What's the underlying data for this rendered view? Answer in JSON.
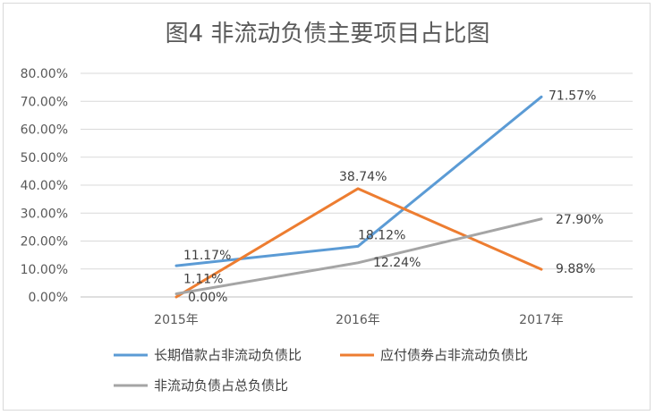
{
  "chart_data": {
    "type": "line",
    "title": "图4  非流动负债主要项目占比图",
    "categories": [
      "2015年",
      "2016年",
      "2017年"
    ],
    "ylim": [
      0,
      80
    ],
    "yticks": [
      "0.00%",
      "10.00%",
      "20.00%",
      "30.00%",
      "40.00%",
      "50.00%",
      "60.00%",
      "70.00%",
      "80.00%"
    ],
    "grid": true,
    "legend_position": "bottom",
    "series": [
      {
        "name": "长期借款占非流动负债比",
        "color": "#5b9bd5",
        "values": [
          11.17,
          18.12,
          71.57
        ],
        "labels": [
          "11.17%",
          "18.12%",
          "71.57%"
        ]
      },
      {
        "name": "应付债券占非流动负债比",
        "color": "#ed7d31",
        "values": [
          0.0,
          38.74,
          9.88
        ],
        "labels": [
          "0.00%",
          "38.74%",
          "9.88%"
        ]
      },
      {
        "name": "非流动负债占总负债比",
        "color": "#a5a5a5",
        "values": [
          1.11,
          12.24,
          27.9
        ],
        "labels": [
          "1.11%",
          "12.24%",
          "27.90%"
        ]
      }
    ]
  }
}
